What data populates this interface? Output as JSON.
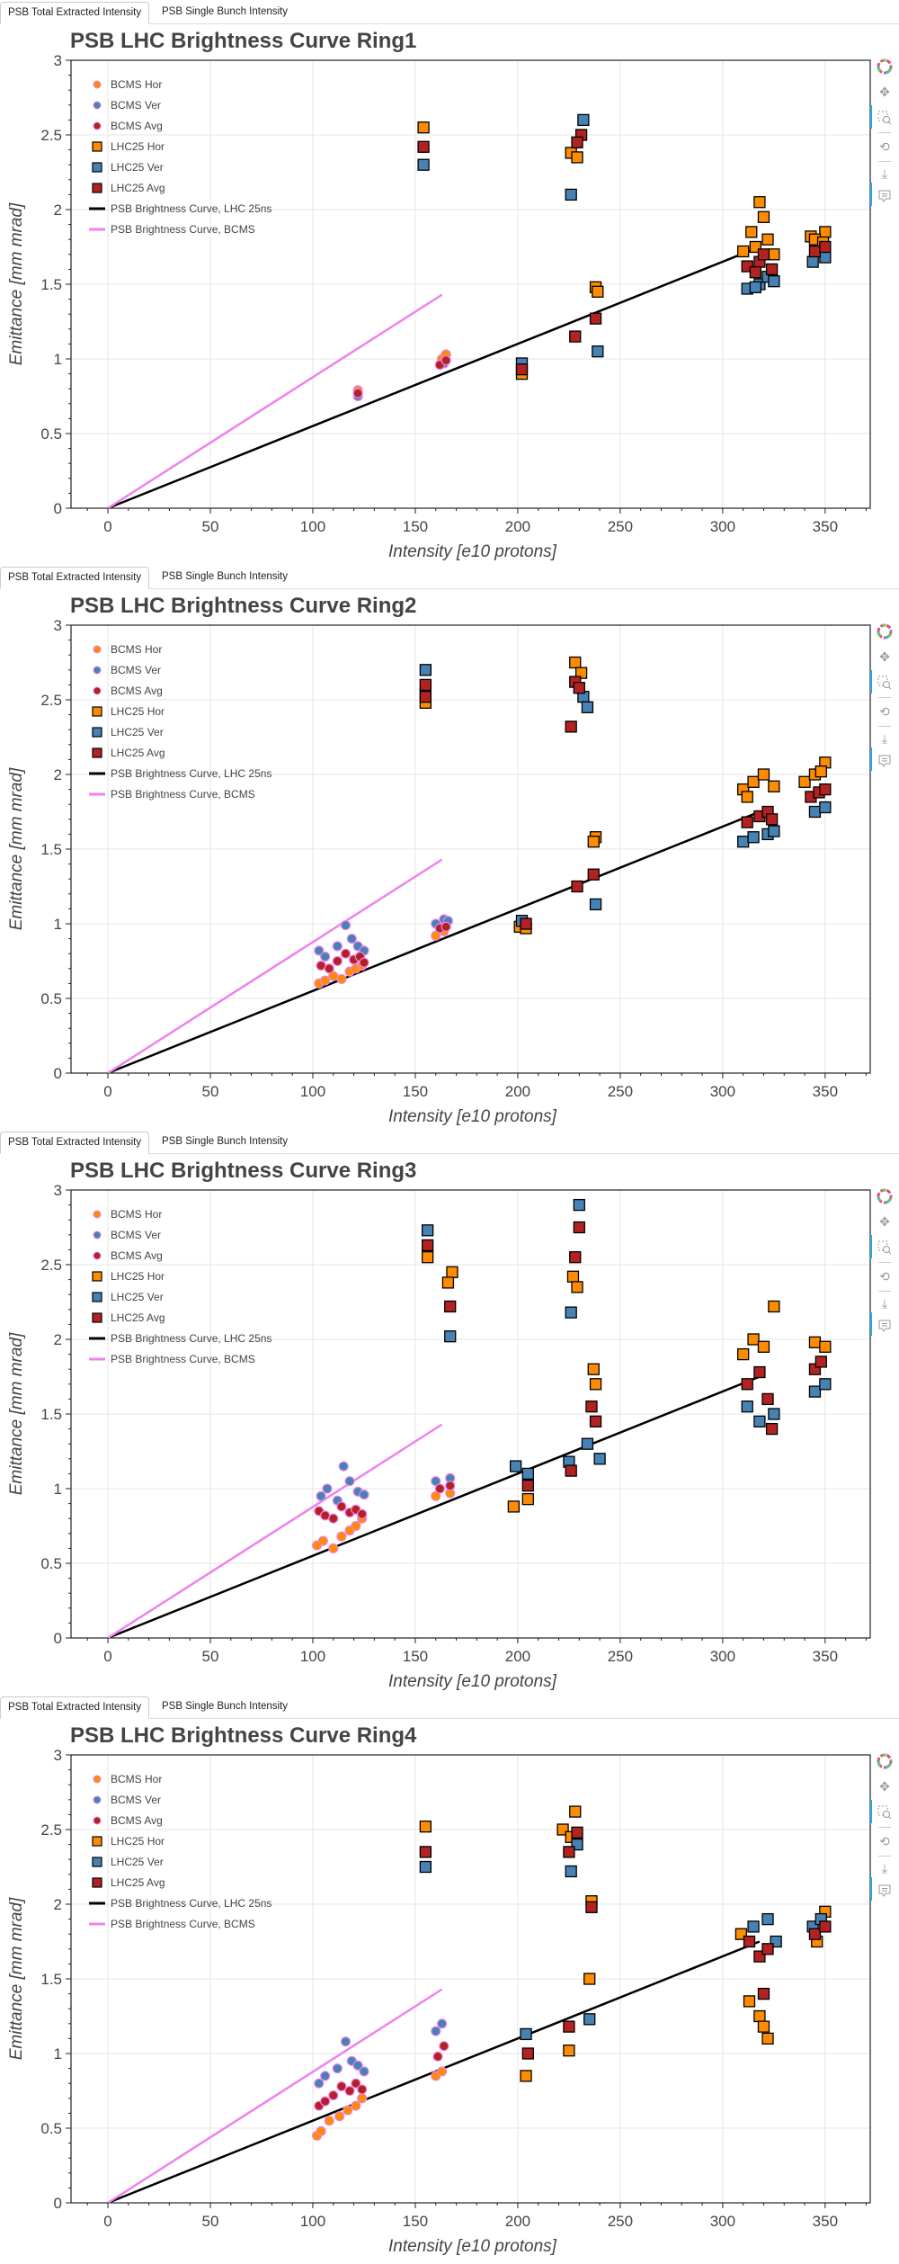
{
  "tabs": [
    {
      "label": "PSB Total Extracted Intensity",
      "active": true
    },
    {
      "label": "PSB Single Bunch Intensity",
      "active": false
    }
  ],
  "toolbar": {
    "tools": [
      "bokeh-logo-icon",
      "pan-icon",
      "box-zoom-icon",
      "reset-icon",
      "save-icon",
      "hover-icon"
    ]
  },
  "colors": {
    "bcms_hor": "#ff8c00",
    "bcms_ver": "#4682b4",
    "bcms_avg": "#b22222",
    "bcms_outline": "#ee82ee",
    "lhc25_hor": "#ff8c00",
    "lhc25_ver": "#4682b4",
    "lhc25_avg": "#b22222",
    "lhc25_outline": "#000000",
    "curve_lhc25": "#000000",
    "curve_bcms": "#ee82ee",
    "grid": "#e5e5e5"
  },
  "chart_data": [
    {
      "type": "scatter",
      "title": "PSB LHC Brightness Curve Ring1",
      "xlabel": "Intensity [e10 protons]",
      "ylabel": "Emittance [mm mrad]",
      "xlim": [
        -18,
        372
      ],
      "ylim": [
        0,
        3
      ],
      "xticks": [
        0,
        50,
        100,
        150,
        200,
        250,
        300,
        350
      ],
      "yticks": [
        0,
        0.5,
        1,
        1.5,
        2,
        2.5,
        3
      ],
      "ytick_labels": [
        "0",
        "0.5",
        "1",
        "1.5",
        "2",
        "2.5",
        "3"
      ],
      "grid": true,
      "legend": "top-left",
      "legend_entries": [
        "BCMS Hor",
        "BCMS Ver",
        "BCMS Avg",
        "LHC25 Hor",
        "LHC25 Ver",
        "LHC25 Avg",
        "PSB Brightness Curve, LHC 25ns",
        "PSB Brightness Curve, BCMS"
      ],
      "lines": [
        {
          "name": "PSB Brightness Curve, LHC 25ns",
          "x": [
            0,
            318
          ],
          "y": [
            0,
            1.75
          ]
        },
        {
          "name": "PSB Brightness Curve, BCMS",
          "x": [
            0,
            163
          ],
          "y": [
            0,
            1.43
          ]
        }
      ],
      "series": [
        {
          "name": "BCMS Hor",
          "marker": "circle",
          "x": [
            122,
            163,
            165
          ],
          "y": [
            0.79,
            1.0,
            1.03
          ]
        },
        {
          "name": "BCMS Ver",
          "marker": "circle",
          "x": [
            122,
            164
          ],
          "y": [
            0.75,
            0.97
          ]
        },
        {
          "name": "BCMS Avg",
          "marker": "circle",
          "x": [
            122,
            162,
            165
          ],
          "y": [
            0.77,
            0.96,
            0.99
          ]
        },
        {
          "name": "LHC25 Hor",
          "marker": "square",
          "x": [
            154,
            226,
            229,
            202,
            238,
            239,
            318,
            320,
            314,
            322,
            316,
            325,
            310,
            343,
            350,
            345,
            349
          ],
          "y": [
            2.55,
            2.38,
            2.35,
            0.9,
            1.48,
            1.45,
            2.05,
            1.95,
            1.85,
            1.8,
            1.75,
            1.7,
            1.72,
            1.82,
            1.85,
            1.8,
            1.78
          ]
        },
        {
          "name": "LHC25 Ver",
          "marker": "square",
          "x": [
            154,
            232,
            226,
            202,
            239,
            312,
            318,
            322,
            325,
            316,
            344,
            350
          ],
          "y": [
            2.3,
            2.6,
            2.1,
            0.97,
            1.05,
            1.47,
            1.5,
            1.55,
            1.52,
            1.48,
            1.65,
            1.68
          ]
        },
        {
          "name": "LHC25 Avg",
          "marker": "square",
          "x": [
            154,
            231,
            229,
            228,
            202,
            238,
            312,
            318,
            320,
            324,
            316,
            345,
            350
          ],
          "y": [
            2.42,
            2.5,
            2.45,
            1.15,
            0.93,
            1.27,
            1.62,
            1.65,
            1.7,
            1.6,
            1.58,
            1.72,
            1.75
          ]
        }
      ]
    },
    {
      "type": "scatter",
      "title": "PSB LHC Brightness Curve Ring2",
      "xlabel": "Intensity [e10 protons]",
      "ylabel": "Emittance [mm mrad]",
      "xlim": [
        -18,
        372
      ],
      "ylim": [
        0,
        3
      ],
      "xticks": [
        0,
        50,
        100,
        150,
        200,
        250,
        300,
        350
      ],
      "yticks": [
        0,
        0.5,
        1,
        1.5,
        2,
        2.5,
        3
      ],
      "ytick_labels": [
        "0",
        "0.5",
        "1",
        "1.5",
        "2",
        "2.5",
        "3"
      ],
      "grid": true,
      "legend": "top-left",
      "legend_entries": [
        "BCMS Hor",
        "BCMS Ver",
        "BCMS Avg",
        "LHC25 Hor",
        "LHC25 Ver",
        "LHC25 Avg",
        "PSB Brightness Curve, LHC 25ns",
        "PSB Brightness Curve, BCMS"
      ],
      "lines": [
        {
          "name": "PSB Brightness Curve, LHC 25ns",
          "x": [
            0,
            318
          ],
          "y": [
            0,
            1.75
          ]
        },
        {
          "name": "PSB Brightness Curve, BCMS",
          "x": [
            0,
            163
          ],
          "y": [
            0,
            1.43
          ]
        }
      ],
      "series": [
        {
          "name": "BCMS Hor",
          "marker": "circle",
          "x": [
            103,
            106,
            110,
            114,
            118,
            121,
            124,
            160,
            164
          ],
          "y": [
            0.6,
            0.62,
            0.65,
            0.63,
            0.68,
            0.7,
            0.72,
            0.92,
            0.95
          ]
        },
        {
          "name": "BCMS Ver",
          "marker": "circle",
          "x": [
            103,
            106,
            112,
            116,
            119,
            122,
            125,
            160,
            164,
            166
          ],
          "y": [
            0.82,
            0.78,
            0.85,
            0.99,
            0.9,
            0.85,
            0.82,
            1.0,
            1.03,
            1.02
          ]
        },
        {
          "name": "BCMS Avg",
          "marker": "circle",
          "x": [
            104,
            108,
            112,
            116,
            120,
            123,
            125,
            162,
            165
          ],
          "y": [
            0.72,
            0.7,
            0.75,
            0.8,
            0.76,
            0.78,
            0.74,
            0.97,
            0.98
          ]
        },
        {
          "name": "LHC25 Hor",
          "marker": "square",
          "x": [
            155,
            155,
            228,
            231,
            238,
            237,
            201,
            204,
            310,
            315,
            320,
            325,
            312,
            340,
            345,
            350,
            348
          ],
          "y": [
            2.48,
            2.55,
            2.75,
            2.68,
            1.58,
            1.55,
            0.98,
            0.97,
            1.9,
            1.95,
            2.0,
            1.92,
            1.85,
            1.95,
            2.0,
            2.08,
            2.02
          ]
        },
        {
          "name": "LHC25 Ver",
          "marker": "square",
          "x": [
            155,
            232,
            234,
            238,
            202,
            310,
            315,
            322,
            325,
            345,
            350
          ],
          "y": [
            2.7,
            2.52,
            2.45,
            1.13,
            1.02,
            1.55,
            1.58,
            1.6,
            1.62,
            1.75,
            1.78
          ]
        },
        {
          "name": "LHC25 Avg",
          "marker": "square",
          "x": [
            155,
            155,
            228,
            230,
            226,
            237,
            229,
            204,
            312,
            318,
            322,
            324,
            343,
            347,
            350
          ],
          "y": [
            2.6,
            2.52,
            2.62,
            2.58,
            2.32,
            1.33,
            1.25,
            1.0,
            1.68,
            1.72,
            1.75,
            1.7,
            1.85,
            1.88,
            1.9
          ]
        }
      ]
    },
    {
      "type": "scatter",
      "title": "PSB LHC Brightness Curve Ring3",
      "xlabel": "Intensity [e10 protons]",
      "ylabel": "Emittance [mm mrad]",
      "xlim": [
        -18,
        372
      ],
      "ylim": [
        0,
        3
      ],
      "xticks": [
        0,
        50,
        100,
        150,
        200,
        250,
        300,
        350
      ],
      "yticks": [
        0,
        0.5,
        1,
        1.5,
        2,
        2.5,
        3
      ],
      "ytick_labels": [
        "0",
        "0.5",
        "1",
        "1.5",
        "2",
        "2.5",
        "3"
      ],
      "grid": true,
      "legend": "top-left",
      "legend_entries": [
        "BCMS Hor",
        "BCMS Ver",
        "BCMS Avg",
        "LHC25 Hor",
        "LHC25 Ver",
        "LHC25 Avg",
        "PSB Brightness Curve, LHC 25ns",
        "PSB Brightness Curve, BCMS"
      ],
      "lines": [
        {
          "name": "PSB Brightness Curve, LHC 25ns",
          "x": [
            0,
            318
          ],
          "y": [
            0,
            1.75
          ]
        },
        {
          "name": "PSB Brightness Curve, BCMS",
          "x": [
            0,
            163
          ],
          "y": [
            0,
            1.43
          ]
        }
      ],
      "series": [
        {
          "name": "BCMS Hor",
          "marker": "circle",
          "x": [
            102,
            105,
            110,
            114,
            118,
            121,
            124,
            160,
            167
          ],
          "y": [
            0.62,
            0.65,
            0.6,
            0.68,
            0.72,
            0.75,
            0.8,
            0.95,
            0.97
          ]
        },
        {
          "name": "BCMS Ver",
          "marker": "circle",
          "x": [
            104,
            107,
            112,
            115,
            118,
            122,
            125,
            160,
            167
          ],
          "y": [
            0.95,
            1.0,
            0.92,
            1.15,
            1.05,
            0.98,
            0.96,
            1.05,
            1.07
          ]
        },
        {
          "name": "BCMS Avg",
          "marker": "circle",
          "x": [
            103,
            106,
            110,
            114,
            118,
            121,
            124,
            162,
            167
          ],
          "y": [
            0.85,
            0.82,
            0.8,
            0.88,
            0.84,
            0.86,
            0.83,
            1.0,
            1.02
          ]
        },
        {
          "name": "LHC25 Hor",
          "marker": "square",
          "x": [
            156,
            168,
            166,
            227,
            229,
            237,
            238,
            198,
            205,
            315,
            320,
            325,
            310,
            345,
            350
          ],
          "y": [
            2.55,
            2.45,
            2.38,
            2.42,
            2.35,
            1.8,
            1.7,
            0.88,
            0.93,
            2.0,
            1.95,
            2.22,
            1.9,
            1.98,
            1.95
          ]
        },
        {
          "name": "LHC25 Ver",
          "marker": "square",
          "x": [
            156,
            167,
            230,
            226,
            234,
            240,
            199,
            205,
            225,
            312,
            318,
            325,
            345,
            350
          ],
          "y": [
            2.73,
            2.02,
            2.9,
            2.18,
            1.3,
            1.2,
            1.15,
            1.1,
            1.18,
            1.55,
            1.45,
            1.5,
            1.65,
            1.7
          ]
        },
        {
          "name": "LHC25 Avg",
          "marker": "square",
          "x": [
            156,
            167,
            230,
            228,
            236,
            238,
            226,
            205,
            312,
            318,
            322,
            324,
            345,
            348
          ],
          "y": [
            2.63,
            2.22,
            2.75,
            2.55,
            1.55,
            1.45,
            1.12,
            1.02,
            1.7,
            1.78,
            1.6,
            1.4,
            1.8,
            1.85
          ]
        }
      ]
    },
    {
      "type": "scatter",
      "title": "PSB LHC Brightness Curve Ring4",
      "xlabel": "Intensity [e10 protons]",
      "ylabel": "Emittance [mm mrad]",
      "xlim": [
        -18,
        372
      ],
      "ylim": [
        0,
        3
      ],
      "xticks": [
        0,
        50,
        100,
        150,
        200,
        250,
        300,
        350
      ],
      "yticks": [
        0,
        0.5,
        1,
        1.5,
        2,
        2.5,
        3
      ],
      "ytick_labels": [
        "0",
        "0.5",
        "1",
        "1.5",
        "2",
        "2.5",
        "3"
      ],
      "grid": true,
      "legend": "top-left",
      "legend_entries": [
        "BCMS Hor",
        "BCMS Ver",
        "BCMS Avg",
        "LHC25 Hor",
        "LHC25 Ver",
        "LHC25 Avg",
        "PSB Brightness Curve, LHC 25ns",
        "PSB Brightness Curve, BCMS"
      ],
      "lines": [
        {
          "name": "PSB Brightness Curve, LHC 25ns",
          "x": [
            0,
            318
          ],
          "y": [
            0,
            1.75
          ]
        },
        {
          "name": "PSB Brightness Curve, BCMS",
          "x": [
            0,
            163
          ],
          "y": [
            0,
            1.43
          ]
        }
      ],
      "series": [
        {
          "name": "BCMS Hor",
          "marker": "circle",
          "x": [
            102,
            104,
            108,
            113,
            117,
            121,
            124,
            160,
            163
          ],
          "y": [
            0.45,
            0.48,
            0.55,
            0.58,
            0.62,
            0.65,
            0.7,
            0.85,
            0.88
          ]
        },
        {
          "name": "BCMS Ver",
          "marker": "circle",
          "x": [
            103,
            106,
            112,
            116,
            119,
            122,
            125,
            160,
            163
          ],
          "y": [
            0.8,
            0.85,
            0.9,
            1.08,
            0.95,
            0.92,
            0.88,
            1.15,
            1.2
          ]
        },
        {
          "name": "BCMS Avg",
          "marker": "circle",
          "x": [
            103,
            106,
            110,
            114,
            118,
            121,
            124,
            161,
            164
          ],
          "y": [
            0.65,
            0.68,
            0.72,
            0.78,
            0.75,
            0.8,
            0.76,
            0.98,
            1.05
          ]
        },
        {
          "name": "LHC25 Hor",
          "marker": "square",
          "x": [
            155,
            228,
            222,
            226,
            236,
            235,
            204,
            225,
            309,
            313,
            318,
            322,
            320,
            346,
            350
          ],
          "y": [
            2.52,
            2.62,
            2.5,
            2.45,
            2.02,
            1.5,
            0.85,
            1.02,
            1.8,
            1.35,
            1.25,
            1.1,
            1.18,
            1.75,
            1.95
          ]
        },
        {
          "name": "LHC25 Ver",
          "marker": "square",
          "x": [
            155,
            229,
            226,
            204,
            235,
            315,
            322,
            326,
            344,
            348
          ],
          "y": [
            2.25,
            2.4,
            2.22,
            1.13,
            1.23,
            1.85,
            1.9,
            1.75,
            1.85,
            1.9
          ]
        },
        {
          "name": "LHC25 Avg",
          "marker": "square",
          "x": [
            155,
            229,
            225,
            236,
            205,
            225,
            313,
            318,
            322,
            320,
            345,
            350
          ],
          "y": [
            2.35,
            2.48,
            2.35,
            1.98,
            1.0,
            1.18,
            1.75,
            1.65,
            1.7,
            1.4,
            1.8,
            1.85
          ]
        }
      ]
    }
  ]
}
